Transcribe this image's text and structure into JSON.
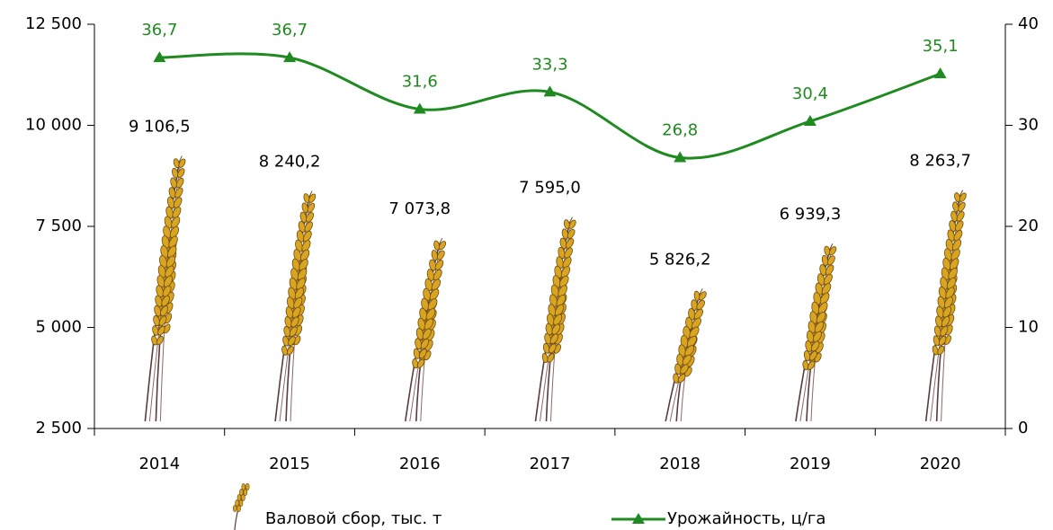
{
  "chart_data": {
    "type": "bar",
    "categories": [
      "2014",
      "2015",
      "2016",
      "2017",
      "2018",
      "2019",
      "2020"
    ],
    "series": [
      {
        "name": "Валовой сбор, тыс. т",
        "color": "#d9a520",
        "values": [
          9106.5,
          8240.2,
          7073.8,
          7595.0,
          5826.2,
          6939.3,
          8263.7
        ],
        "value_labels": [
          "9 106,5",
          "8 240,2",
          "7 073,8",
          "7 595,0",
          "5 826,2",
          "6 939,3",
          "8 263,7"
        ]
      },
      {
        "name": "Урожайность, ц/га",
        "type": "line",
        "axis": "y2",
        "color": "#1f8a1f",
        "values": [
          36.7,
          36.7,
          31.6,
          33.3,
          26.8,
          30.4,
          35.1
        ],
        "value_labels": [
          "36,7",
          "36,7",
          "31,6",
          "33,3",
          "26,8",
          "30,4",
          "35,1"
        ]
      }
    ],
    "ylim": [
      2500,
      12500
    ],
    "yticks": [
      {
        "value": 2500,
        "label": "2 500"
      },
      {
        "value": 5000,
        "label": "5 000"
      },
      {
        "value": 7500,
        "label": "7 500"
      },
      {
        "value": 10000,
        "label": "10 000"
      },
      {
        "value": 12500,
        "label": "12 500"
      }
    ],
    "y2lim": [
      0,
      40
    ],
    "y2ticks": [
      0,
      10,
      20,
      30,
      40
    ],
    "legend": "bottom"
  }
}
